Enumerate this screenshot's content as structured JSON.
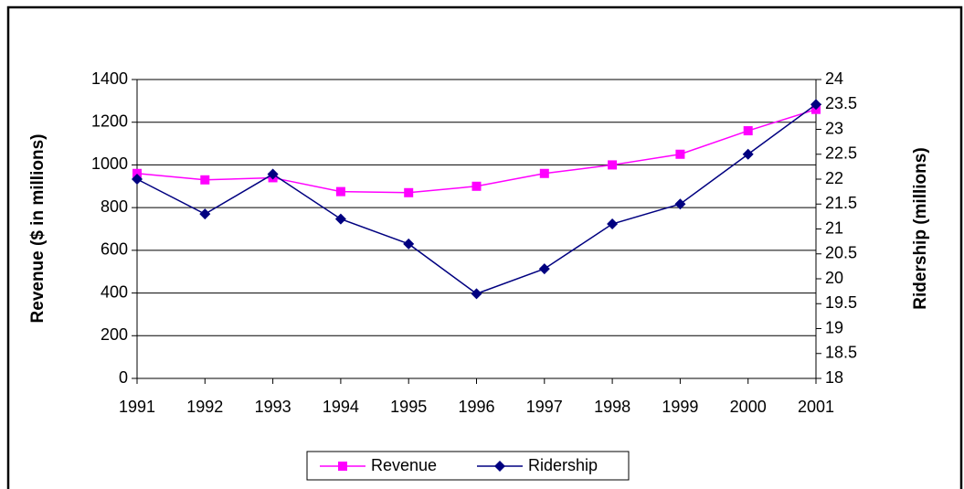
{
  "chart_data": {
    "type": "line",
    "categories": [
      "1991",
      "1992",
      "1993",
      "1994",
      "1995",
      "1996",
      "1997",
      "1998",
      "1999",
      "2000",
      "2001"
    ],
    "y_label": "Revenue ($ in millions)",
    "y2_label": "Ridership (millions)",
    "series": [
      {
        "name": "Revenue",
        "color": "#ff00ff",
        "marker": "square",
        "values": [
          960,
          930,
          940,
          875,
          870,
          900,
          960,
          1000,
          1050,
          1160,
          1260
        ]
      },
      {
        "name": "Ridership",
        "color": "#000080",
        "marker": "diamond",
        "axis": "y2",
        "values": [
          22.0,
          21.3,
          22.1,
          21.2,
          20.7,
          19.7,
          20.2,
          21.1,
          21.5,
          22.5,
          23.5
        ]
      }
    ],
    "ylim": [
      0,
      1400
    ],
    "yticks": [
      0,
      200,
      400,
      600,
      800,
      1000,
      1200,
      1400
    ],
    "y2lim": [
      18,
      24
    ],
    "y2ticks": [
      18,
      18.5,
      19,
      19.5,
      20,
      20.5,
      21,
      21.5,
      22,
      22.5,
      23,
      23.5,
      24
    ],
    "grid": true,
    "legend": "bottom"
  }
}
